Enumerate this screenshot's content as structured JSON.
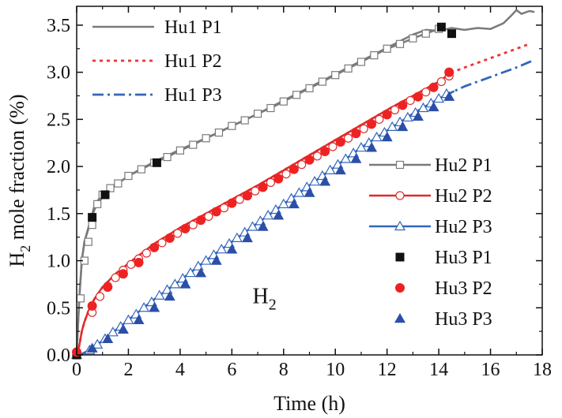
{
  "chart_data": {
    "type": "line",
    "title": "",
    "xlabel": "Time (h)",
    "ylabel": {
      "main": "H",
      "sub": "2",
      "rest": " mole fraction (%)"
    },
    "xlim": [
      0,
      18
    ],
    "ylim": [
      0,
      3.7
    ],
    "xticks": [
      0,
      2,
      4,
      6,
      8,
      10,
      12,
      14,
      16,
      18
    ],
    "yticks": [
      0.0,
      0.5,
      1.0,
      1.5,
      2.0,
      2.5,
      3.0,
      3.5
    ],
    "xtick_labels": [
      "0",
      "2",
      "4",
      "6",
      "8",
      "10",
      "12",
      "14",
      "16",
      "18"
    ],
    "ytick_labels": [
      "0.0",
      "0.5",
      "1.0",
      "1.5",
      "2.0",
      "2.5",
      "3.0",
      "3.5"
    ],
    "annotation": {
      "main": "H",
      "sub": "2"
    },
    "series": [
      {
        "name": "Hu1 P1",
        "style": "solid",
        "color": "#7a7a7a",
        "marker": "none",
        "x": [
          0,
          0.1,
          0.2,
          0.3,
          0.5,
          0.7,
          1.0,
          1.5,
          2,
          3,
          4,
          5,
          6,
          7,
          8,
          9,
          10,
          11,
          12,
          13,
          13.5,
          14.0,
          14.5,
          15,
          15.5,
          16,
          16.5,
          16.8,
          17,
          17.2,
          17.5,
          17.7
        ],
        "y": [
          0.0,
          0.6,
          1.0,
          1.2,
          1.4,
          1.55,
          1.68,
          1.8,
          1.9,
          2.05,
          2.18,
          2.3,
          2.43,
          2.56,
          2.7,
          2.84,
          2.98,
          3.12,
          3.26,
          3.4,
          3.45,
          3.44,
          3.47,
          3.45,
          3.47,
          3.46,
          3.52,
          3.6,
          3.66,
          3.62,
          3.65,
          3.64
        ]
      },
      {
        "name": "Hu1 P2",
        "style": "dotted",
        "color": "#ee3333",
        "marker": "none",
        "x": [
          0,
          0.1,
          0.2,
          0.3,
          0.5,
          0.7,
          1,
          1.5,
          2,
          3,
          4,
          5,
          6,
          7,
          8,
          9,
          10,
          11,
          12,
          13,
          14,
          14.5,
          15,
          16,
          17,
          17.5
        ],
        "y": [
          0.0,
          0.1,
          0.25,
          0.35,
          0.5,
          0.6,
          0.72,
          0.86,
          0.97,
          1.18,
          1.35,
          1.5,
          1.65,
          1.8,
          1.96,
          2.12,
          2.28,
          2.44,
          2.6,
          2.75,
          2.9,
          3.0,
          3.05,
          3.15,
          3.25,
          3.3
        ]
      },
      {
        "name": "Hu1 P3",
        "style": "dashdot",
        "color": "#3366bb",
        "marker": "none",
        "x": [
          0,
          0.2,
          0.5,
          1,
          2,
          3,
          4,
          5,
          6,
          7,
          8,
          9,
          10,
          11,
          12,
          13,
          14,
          14.6,
          15,
          16,
          17,
          17.6
        ],
        "y": [
          0.0,
          0.01,
          0.05,
          0.15,
          0.37,
          0.59,
          0.79,
          1.0,
          1.2,
          1.4,
          1.6,
          1.8,
          2.0,
          2.2,
          2.38,
          2.56,
          2.72,
          2.8,
          2.85,
          2.95,
          3.05,
          3.12
        ]
      },
      {
        "name": "Hu2 P1",
        "style": "solid",
        "color": "#7a7a7a",
        "marker": "open-square",
        "x": [
          0,
          0.1,
          0.2,
          0.3,
          0.5,
          0.7,
          1,
          1.3,
          1.6,
          2,
          2.5,
          3,
          3.5,
          4,
          4.5,
          5,
          5.5,
          6,
          6.5,
          7,
          7.5,
          8,
          8.5,
          9,
          9.5,
          10,
          10.5,
          11,
          11.5,
          12,
          12.5,
          13,
          13.5,
          14
        ],
        "y": [
          0.0,
          0.6,
          1.0,
          1.2,
          1.38,
          1.6,
          1.7,
          1.77,
          1.82,
          1.9,
          1.97,
          2.04,
          2.1,
          2.17,
          2.23,
          2.3,
          2.36,
          2.43,
          2.49,
          2.56,
          2.62,
          2.69,
          2.76,
          2.83,
          2.9,
          2.97,
          3.04,
          3.11,
          3.18,
          3.25,
          3.3,
          3.36,
          3.41,
          3.46
        ],
        "marker_x": [
          0,
          0.15,
          0.3,
          0.45,
          0.6,
          0.8,
          1.0,
          1.3,
          1.6,
          2.0,
          2.5,
          3.0,
          3.5,
          4.0,
          4.5,
          5.0,
          5.5,
          6.0,
          6.5,
          7.0,
          7.5,
          8.0,
          8.5,
          9.0,
          9.5,
          10.0,
          10.5,
          11.0,
          11.5,
          12.0,
          12.5,
          13.0,
          13.5,
          14.0
        ],
        "marker_y": [
          0.0,
          0.6,
          1.0,
          1.2,
          1.38,
          1.6,
          1.7,
          1.77,
          1.82,
          1.9,
          1.97,
          2.04,
          2.1,
          2.17,
          2.23,
          2.3,
          2.36,
          2.43,
          2.49,
          2.56,
          2.62,
          2.69,
          2.76,
          2.83,
          2.9,
          2.97,
          3.04,
          3.11,
          3.18,
          3.25,
          3.3,
          3.36,
          3.41,
          3.46
        ]
      },
      {
        "name": "Hu2 P2",
        "style": "solid",
        "color": "#e02a2a",
        "marker": "open-circle",
        "x": [
          0,
          0.1,
          0.2,
          0.3,
          0.5,
          0.7,
          1,
          1.5,
          2,
          3,
          4,
          5,
          6,
          7,
          8,
          9,
          10,
          11,
          12,
          13,
          14,
          14.5
        ],
        "y": [
          0.0,
          0.1,
          0.25,
          0.35,
          0.5,
          0.6,
          0.72,
          0.86,
          0.97,
          1.18,
          1.35,
          1.5,
          1.65,
          1.8,
          1.96,
          2.12,
          2.28,
          2.44,
          2.6,
          2.75,
          2.9,
          3.0
        ],
        "marker_x": [
          0,
          0.6,
          0.9,
          1.2,
          1.5,
          1.8,
          2.1,
          2.4,
          2.7,
          3.0,
          3.3,
          3.6,
          3.9,
          4.2,
          4.5,
          4.8,
          5.1,
          5.4,
          5.7,
          6.0,
          6.3,
          6.6,
          6.9,
          7.2,
          7.5,
          7.8,
          8.1,
          8.4,
          8.7,
          9.0,
          9.3,
          9.6,
          9.9,
          10.2,
          10.5,
          10.8,
          11.1,
          11.4,
          11.7,
          12.0,
          12.3,
          12.6,
          12.9,
          13.2,
          13.5,
          13.8,
          14.1,
          14.4
        ],
        "marker_y": [
          0.0,
          0.45,
          0.62,
          0.73,
          0.82,
          0.9,
          0.96,
          1.02,
          1.08,
          1.14,
          1.19,
          1.24,
          1.29,
          1.34,
          1.38,
          1.43,
          1.47,
          1.52,
          1.56,
          1.61,
          1.65,
          1.69,
          1.74,
          1.78,
          1.83,
          1.87,
          1.92,
          1.97,
          2.02,
          2.07,
          2.11,
          2.16,
          2.21,
          2.26,
          2.3,
          2.35,
          2.4,
          2.45,
          2.5,
          2.55,
          2.6,
          2.65,
          2.7,
          2.74,
          2.79,
          2.84,
          2.9,
          2.96
        ]
      },
      {
        "name": "Hu2 P3",
        "style": "solid",
        "color": "#3366bb",
        "marker": "open-triangle",
        "x": [
          0,
          0.2,
          0.5,
          1,
          2,
          3,
          4,
          5,
          6,
          7,
          8,
          9,
          10,
          11,
          12,
          13,
          14,
          14.6
        ],
        "y": [
          0.0,
          0.01,
          0.05,
          0.15,
          0.37,
          0.59,
          0.79,
          1.0,
          1.2,
          1.4,
          1.6,
          1.8,
          2.0,
          2.2,
          2.38,
          2.56,
          2.72,
          2.8
        ],
        "marker_x": [
          0,
          0.5,
          0.8,
          1.1,
          1.4,
          1.7,
          2.0,
          2.3,
          2.6,
          2.9,
          3.2,
          3.5,
          3.8,
          4.1,
          4.4,
          4.7,
          5.0,
          5.3,
          5.6,
          5.9,
          6.2,
          6.5,
          6.8,
          7.1,
          7.4,
          7.7,
          8.0,
          8.3,
          8.6,
          8.9,
          9.2,
          9.5,
          9.8,
          10.1,
          10.4,
          10.7,
          11.0,
          11.3,
          11.6,
          11.9,
          12.2,
          12.5,
          12.8,
          13.1,
          13.4,
          13.7,
          14.0,
          14.3
        ],
        "marker_y": [
          0.0,
          0.05,
          0.11,
          0.17,
          0.24,
          0.3,
          0.37,
          0.43,
          0.5,
          0.56,
          0.63,
          0.69,
          0.75,
          0.81,
          0.87,
          0.94,
          1.0,
          1.06,
          1.12,
          1.18,
          1.24,
          1.3,
          1.36,
          1.42,
          1.48,
          1.54,
          1.6,
          1.66,
          1.72,
          1.78,
          1.84,
          1.9,
          1.96,
          2.02,
          2.08,
          2.14,
          2.2,
          2.25,
          2.31,
          2.36,
          2.42,
          2.47,
          2.52,
          2.57,
          2.62,
          2.67,
          2.72,
          2.77
        ]
      },
      {
        "name": "Hu3 P1",
        "style": "none",
        "color": "#111111",
        "marker": "filled-square",
        "marker_x": [
          0,
          0.6,
          1.1,
          3.1,
          14.1,
          14.5
        ],
        "marker_y": [
          0.0,
          1.46,
          1.7,
          2.04,
          3.48,
          3.41
        ]
      },
      {
        "name": "Hu3 P2",
        "style": "none",
        "color": "#ee2222",
        "marker": "filled-circle",
        "marker_x": [
          0,
          0.6,
          1.2,
          1.8,
          2.4,
          3.0,
          3.6,
          4.2,
          4.8,
          5.4,
          6.0,
          6.6,
          7.2,
          7.8,
          8.4,
          9.0,
          9.6,
          10.2,
          10.8,
          11.4,
          12.0,
          12.6,
          13.2,
          13.8,
          14.4
        ],
        "marker_y": [
          0.03,
          0.52,
          0.72,
          0.86,
          0.98,
          1.14,
          1.24,
          1.34,
          1.43,
          1.52,
          1.61,
          1.69,
          1.78,
          1.87,
          1.97,
          2.07,
          2.16,
          2.26,
          2.35,
          2.45,
          2.55,
          2.65,
          2.74,
          2.84,
          3.0
        ]
      },
      {
        "name": "Hu3 P3",
        "style": "none",
        "color": "#2b4fa8",
        "marker": "filled-triangle",
        "marker_x": [
          0.6,
          1.2,
          1.8,
          2.4,
          3.0,
          3.6,
          4.2,
          4.8,
          5.4,
          6.0,
          6.6,
          7.2,
          7.8,
          8.4,
          9.0,
          9.6,
          10.2,
          10.8,
          11.4,
          12.0,
          12.6,
          13.2,
          13.8,
          14.4
        ],
        "marker_y": [
          0.07,
          0.17,
          0.27,
          0.37,
          0.5,
          0.62,
          0.75,
          0.87,
          1.0,
          1.12,
          1.24,
          1.36,
          1.48,
          1.6,
          1.72,
          1.84,
          1.96,
          2.08,
          2.2,
          2.31,
          2.42,
          2.53,
          2.63,
          2.74
        ]
      }
    ]
  }
}
